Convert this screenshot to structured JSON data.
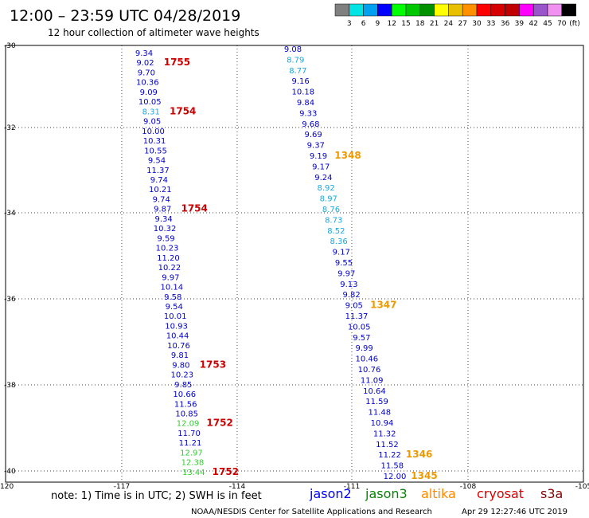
{
  "header": {
    "title": "12:00 – 23:59 UTC 04/28/2019",
    "subtitle": "12 hour collection of altimeter wave heights"
  },
  "colorbar": {
    "colors": [
      "#808080",
      "#00e4e4",
      "#00a0f0",
      "#0000ff",
      "#00ff00",
      "#00c800",
      "#009000",
      "#ffff00",
      "#e8c000",
      "#ff9000",
      "#ff0000",
      "#d60000",
      "#c00000",
      "#ff00ff",
      "#9955c9",
      "#f090f0",
      "#000000"
    ],
    "labels": [
      "3",
      "6",
      "9",
      "12",
      "15",
      "18",
      "21",
      "24",
      "27",
      "30",
      "33",
      "36",
      "39",
      "42",
      "45",
      "70"
    ],
    "unit": "(ft)"
  },
  "axes": {
    "lat_labels": [
      "-30",
      "-32",
      "-34",
      "-36",
      "-38",
      "-40"
    ],
    "lon_labels": [
      "-120",
      "-117",
      "-114",
      "-111",
      "-108",
      "-105"
    ]
  },
  "track_colors": {
    "c9": "#0000cc",
    "c6": "#18a8e0",
    "c12": "#33cc33",
    "time": "#cc0000",
    "time_o": "#ee9900"
  },
  "track_a": {
    "values": [
      [
        "9.34",
        "c9"
      ],
      [
        "9.02",
        "c9"
      ],
      [
        "9.70",
        "c9"
      ],
      [
        "10.36",
        "c9"
      ],
      [
        "9.09",
        "c9"
      ],
      [
        "10.05",
        "c9"
      ],
      [
        "8.31",
        "c6"
      ],
      [
        "9.05",
        "c9"
      ],
      [
        "10.00",
        "c9"
      ],
      [
        "10.31",
        "c9"
      ],
      [
        "10.55",
        "c9"
      ],
      [
        "9.54",
        "c9"
      ],
      [
        "11.37",
        "c9"
      ],
      [
        "9.74",
        "c9"
      ],
      [
        "10.21",
        "c9"
      ],
      [
        "9.74",
        "c9"
      ],
      [
        "9.87",
        "c9"
      ],
      [
        "9.34",
        "c9"
      ],
      [
        "10.32",
        "c9"
      ],
      [
        "9.59",
        "c9"
      ],
      [
        "10.23",
        "c9"
      ],
      [
        "11.20",
        "c9"
      ],
      [
        "10.22",
        "c9"
      ],
      [
        "9.97",
        "c9"
      ],
      [
        "10.14",
        "c9"
      ],
      [
        "9.58",
        "c9"
      ],
      [
        "9.54",
        "c9"
      ],
      [
        "10.01",
        "c9"
      ],
      [
        "10.93",
        "c9"
      ],
      [
        "10.44",
        "c9"
      ],
      [
        "10.76",
        "c9"
      ],
      [
        "9.81",
        "c9"
      ],
      [
        "9.80",
        "c9"
      ],
      [
        "10.23",
        "c9"
      ],
      [
        "9.85",
        "c9"
      ],
      [
        "10.66",
        "c9"
      ],
      [
        "11.56",
        "c9"
      ],
      [
        "10.85",
        "c9"
      ],
      [
        "12.09",
        "c12"
      ],
      [
        "11.70",
        "c9"
      ],
      [
        "11.21",
        "c9"
      ],
      [
        "12.97",
        "c12"
      ],
      [
        "12.38",
        "c12"
      ],
      [
        "13.44",
        "c12"
      ]
    ],
    "times": [
      [
        "1755",
        "time",
        1
      ],
      [
        "1754",
        "time",
        6
      ],
      [
        "1754",
        "time",
        16
      ],
      [
        "1753",
        "time",
        32
      ],
      [
        "1752",
        "time",
        38
      ],
      [
        "1752",
        "time",
        43
      ]
    ]
  },
  "track_b": {
    "values": [
      [
        "9.08",
        "c9"
      ],
      [
        "8.79",
        "c6"
      ],
      [
        "8.77",
        "c6"
      ],
      [
        "9.16",
        "c9"
      ],
      [
        "10.18",
        "c9"
      ],
      [
        "9.84",
        "c9"
      ],
      [
        "9.33",
        "c9"
      ],
      [
        "9.68",
        "c9"
      ],
      [
        "9.69",
        "c9"
      ],
      [
        "9.37",
        "c9"
      ],
      [
        "9.19",
        "c9"
      ],
      [
        "9.17",
        "c9"
      ],
      [
        "9.24",
        "c9"
      ],
      [
        "8.92",
        "c6"
      ],
      [
        "8.97",
        "c6"
      ],
      [
        "8.76",
        "c6"
      ],
      [
        "8.73",
        "c6"
      ],
      [
        "8.52",
        "c6"
      ],
      [
        "8.36",
        "c6"
      ],
      [
        "9.17",
        "c9"
      ],
      [
        "9.55",
        "c9"
      ],
      [
        "9.97",
        "c9"
      ],
      [
        "9.13",
        "c9"
      ],
      [
        "9.82",
        "c9"
      ],
      [
        "9.05",
        "c9"
      ],
      [
        "11.37",
        "c9"
      ],
      [
        "10.05",
        "c9"
      ],
      [
        "9.57",
        "c9"
      ],
      [
        "9.99",
        "c9"
      ],
      [
        "10.46",
        "c9"
      ],
      [
        "10.76",
        "c9"
      ],
      [
        "11.09",
        "c9"
      ],
      [
        "10.64",
        "c9"
      ],
      [
        "11.59",
        "c9"
      ],
      [
        "11.48",
        "c9"
      ],
      [
        "10.94",
        "c9"
      ],
      [
        "11.32",
        "c9"
      ],
      [
        "11.52",
        "c9"
      ],
      [
        "11.22",
        "c9"
      ],
      [
        "11.58",
        "c9"
      ],
      [
        "12.00",
        "c9"
      ]
    ],
    "times": [
      [
        "1348",
        "time_o",
        10
      ],
      [
        "1347",
        "time_o",
        24
      ],
      [
        "1346",
        "time_o",
        38
      ],
      [
        "1345",
        "time_o",
        40
      ]
    ]
  },
  "footer": {
    "note": "note: 1) Time is in UTC; 2) SWH is in feet",
    "legend": [
      {
        "name": "jason2",
        "color": "#0000ff"
      },
      {
        "name": "jason3",
        "color": "#008800"
      },
      {
        "name": "altika",
        "color": "#ff8800"
      },
      {
        "name": "cryosat",
        "color": "#dd0000"
      },
      {
        "name": "s3a",
        "color": "#880000"
      }
    ],
    "credit": "NOAA/NESDIS Center for Satellite Applications and Research",
    "timestamp": "Apr 29 12:27:46 UTC 2019"
  }
}
